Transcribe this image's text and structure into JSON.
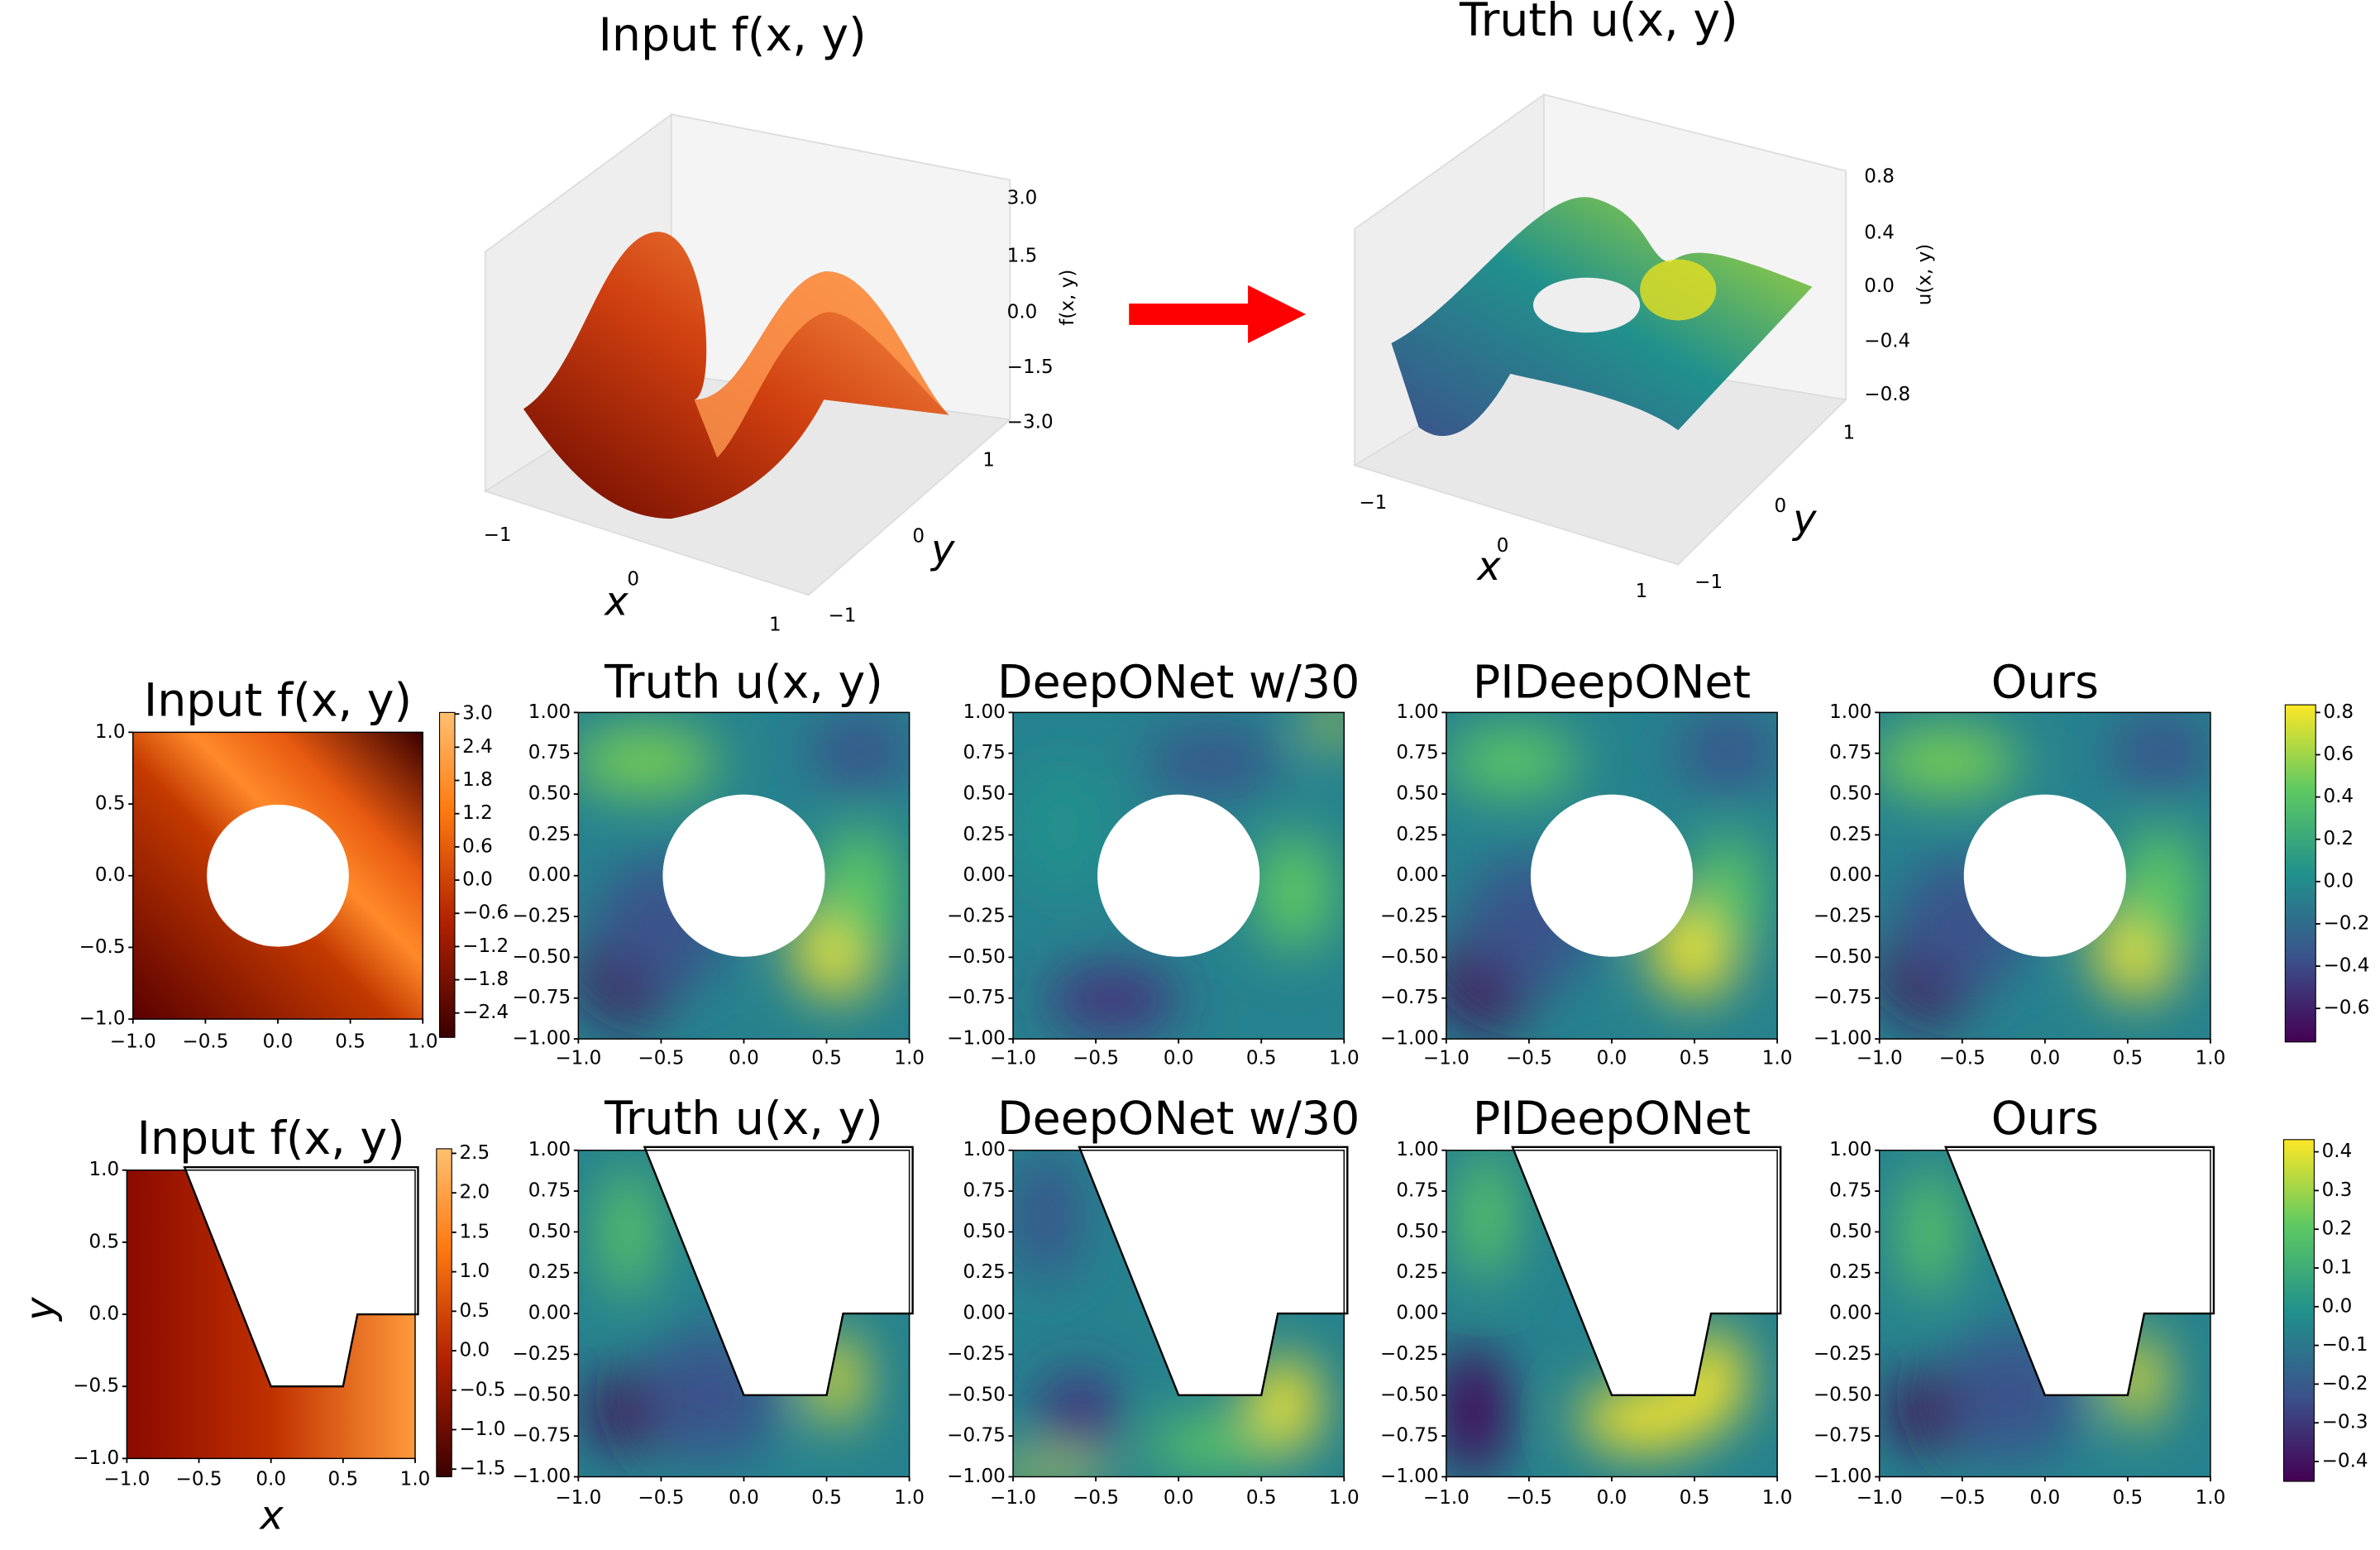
{
  "top": {
    "panels": [
      {
        "title": "Input f(x, y)",
        "zlabel": "f(x, y)",
        "zticks": [
          "3.0",
          "1.5",
          "0.0",
          "−1.5",
          "−3.0"
        ],
        "xticks": [
          "−1",
          "0",
          "1"
        ],
        "yticks": [
          "1",
          "0",
          "−1"
        ],
        "xlabel": "x",
        "ylabel": "y"
      },
      {
        "title": "Truth u(x, y)",
        "zlabel": "u(x, y)",
        "zticks": [
          "0.8",
          "0.4",
          "0.0",
          "−0.4",
          "−0.8"
        ],
        "xticks": [
          "−1",
          "0",
          "1"
        ],
        "yticks": [
          "1",
          "0",
          "−1"
        ],
        "xlabel": "x",
        "ylabel": "y"
      }
    ]
  },
  "rows": [
    {
      "titles": [
        "Input f(x, y)",
        "Truth u(x, y)",
        "DeepONet w/30",
        "PIDeepONet",
        "Ours"
      ],
      "input_colorbar": [
        "3.0",
        "2.4",
        "1.8",
        "1.2",
        "0.6",
        "0.0",
        "−0.6",
        "−1.2",
        "−1.8",
        "−2.4"
      ],
      "colorbar": [
        "0.8",
        "0.6",
        "0.4",
        "0.2",
        "0.0",
        "−0.2",
        "−0.4",
        "−0.6"
      ]
    },
    {
      "titles": [
        "Input f(x, y)",
        "Truth u(x, y)",
        "DeepONet w/30",
        "PIDeepONet",
        "Ours"
      ],
      "input_colorbar": [
        "2.5",
        "2.0",
        "1.5",
        "1.0",
        "0.5",
        "0.0",
        "−0.5",
        "−1.0",
        "−1.5"
      ],
      "colorbar": [
        "0.4",
        "0.3",
        "0.2",
        "0.1",
        "0.0",
        "−0.1",
        "−0.2",
        "−0.3",
        "−0.4"
      ]
    }
  ],
  "ticks": {
    "x": [
      "−1.0",
      "−0.5",
      "0.0",
      "0.5",
      "1.0"
    ],
    "y_input": [
      "1.0",
      "0.5",
      "0.0",
      "−0.5",
      "−1.0"
    ],
    "y": [
      "1.00",
      "0.75",
      "0.50",
      "0.25",
      "0.00",
      "−0.25",
      "−0.50",
      "−0.75",
      "−1.00"
    ]
  },
  "labels": {
    "x": "x",
    "y": "y"
  }
}
